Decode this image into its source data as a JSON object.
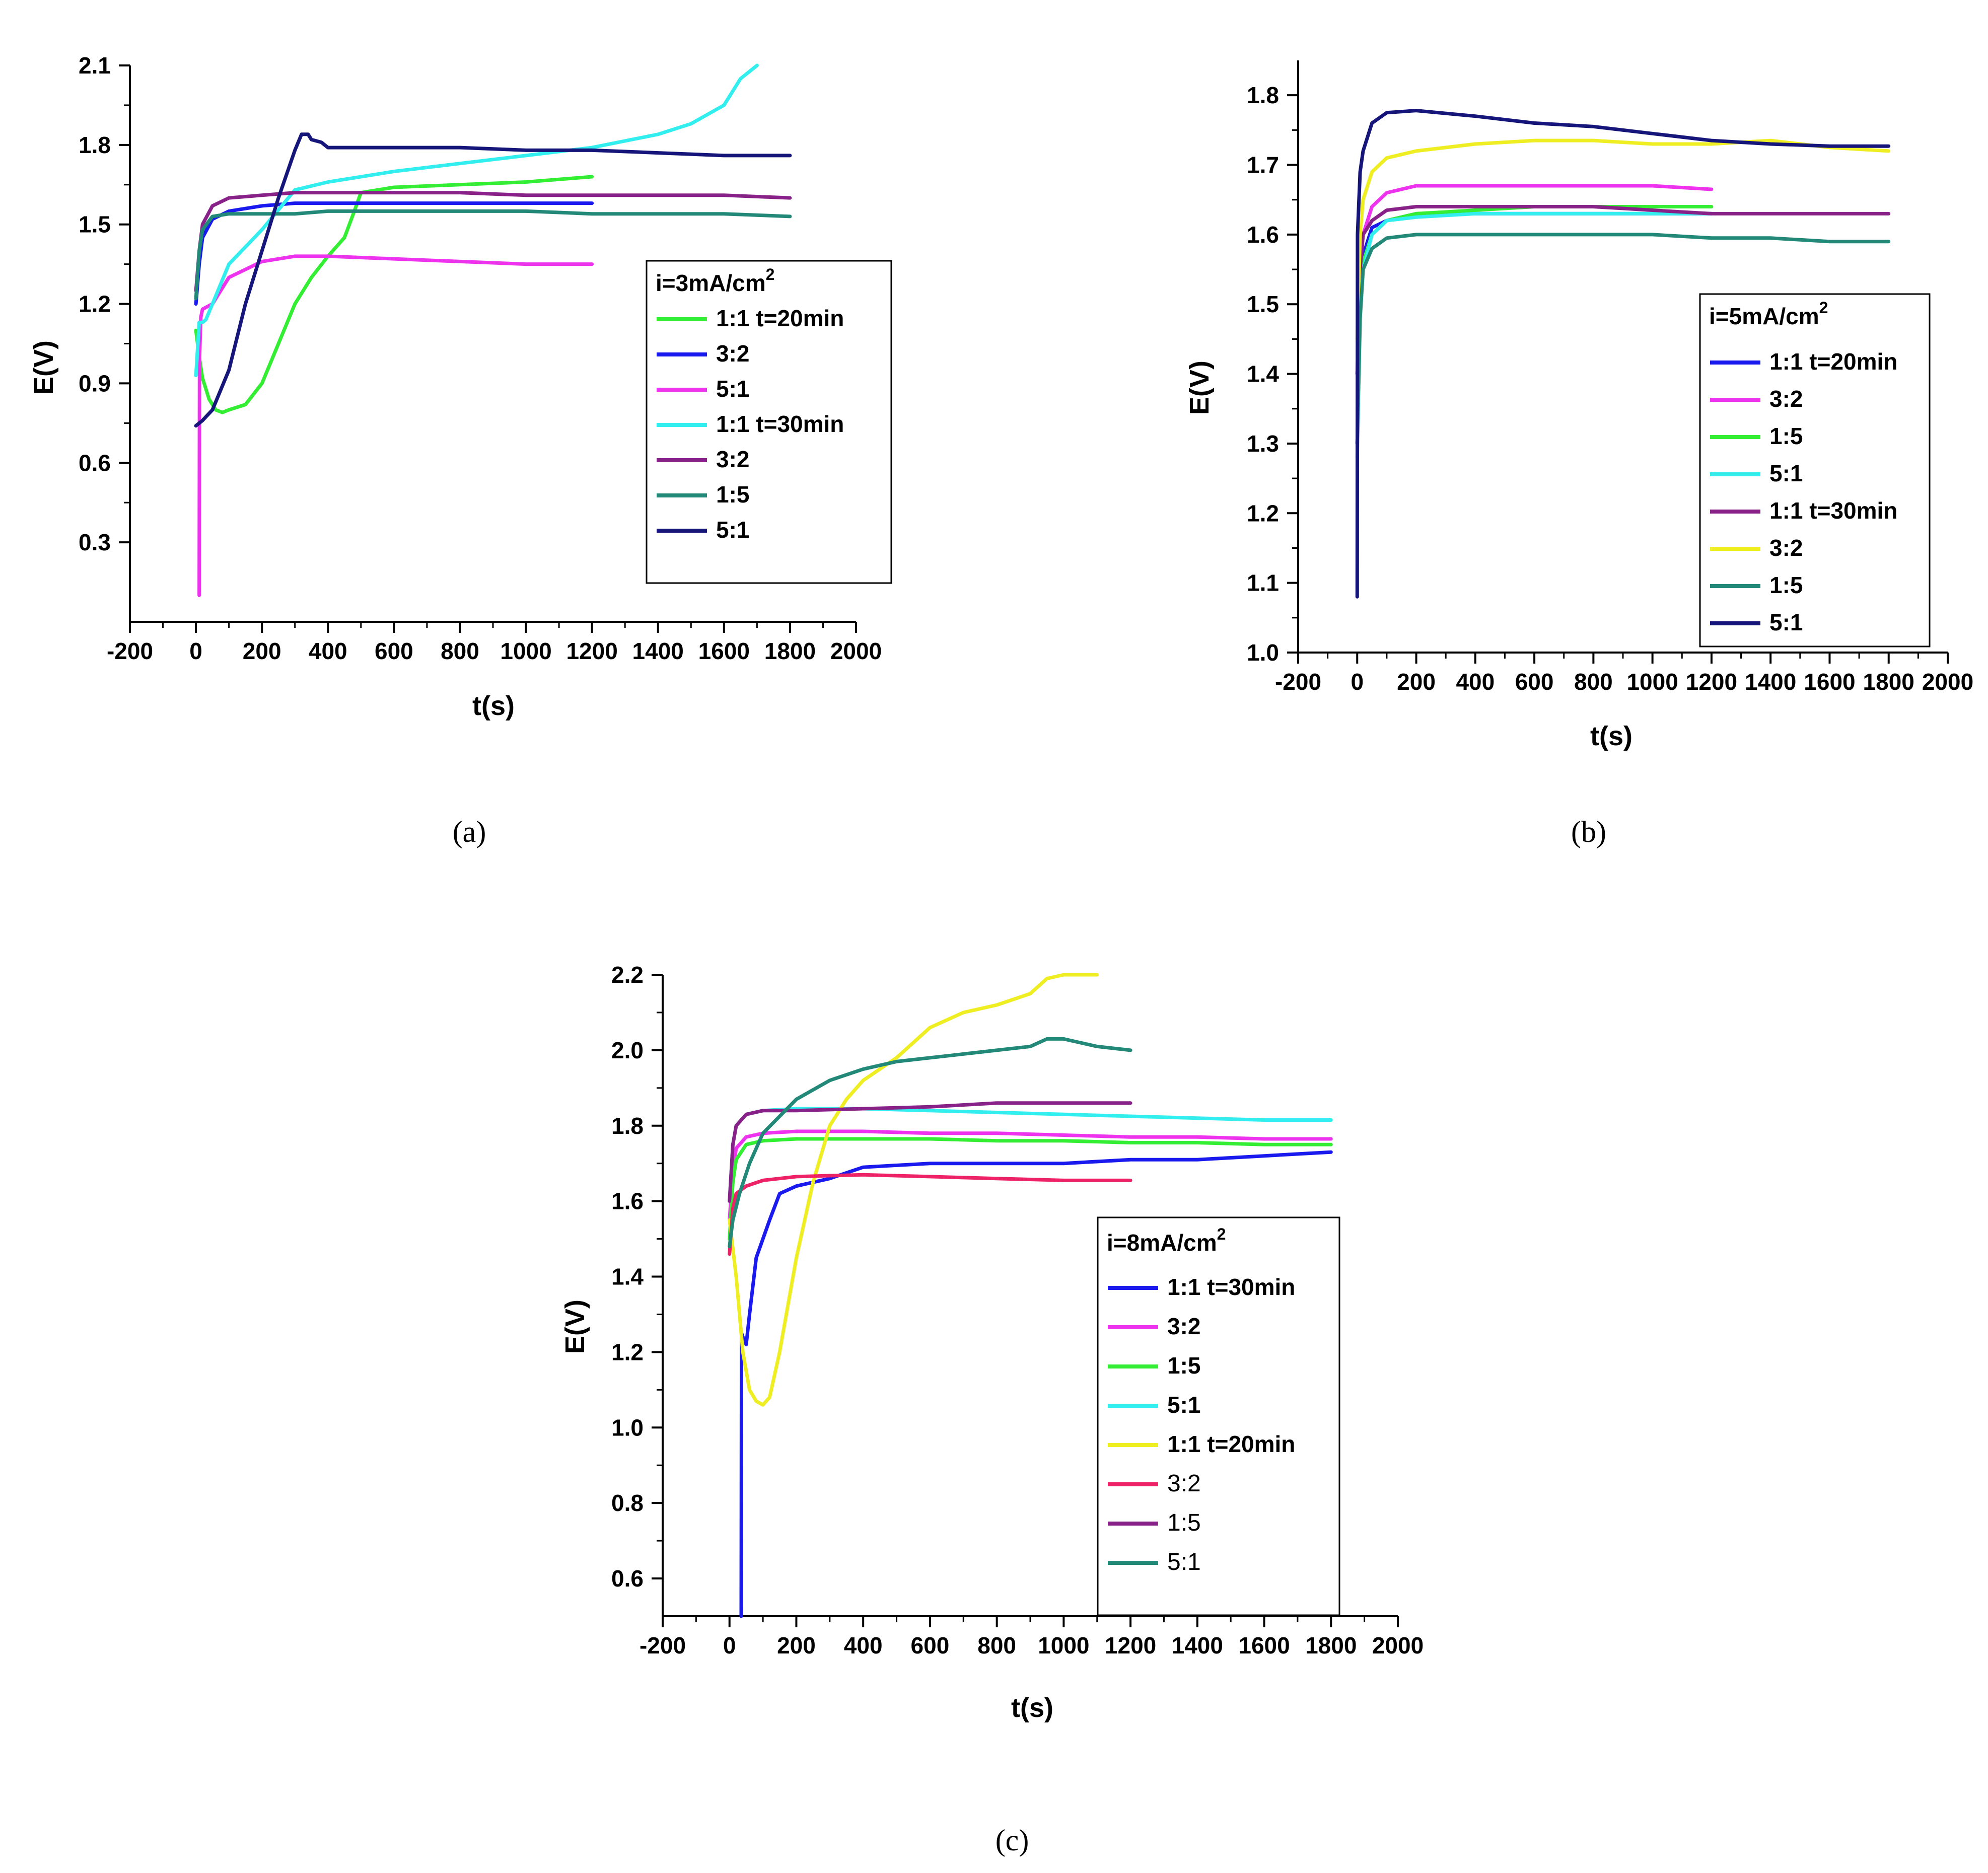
{
  "figure_captions": [
    "(a)",
    "(b)",
    "(c)"
  ],
  "chart_data": [
    {
      "type": "line",
      "caption_letter": "a",
      "xlabel": "t(s)",
      "ylabel": "E(V)",
      "xlim": [
        -200,
        2000
      ],
      "ylim": [
        0,
        2.1
      ],
      "xticks": [
        -200,
        0,
        200,
        400,
        600,
        800,
        1000,
        1200,
        1400,
        1600,
        1800,
        2000
      ],
      "yticks": [
        0.3,
        0.6,
        0.9,
        1.2,
        1.5,
        1.8,
        2.1
      ],
      "ytick_labels": [
        "0.3",
        "0.6",
        "0.9",
        "1.2",
        "1.5",
        "1.8",
        "2.1"
      ],
      "legend_title": "i=3mA/cm",
      "legend_title_sup": "2",
      "legend_position": "center-right",
      "series": [
        {
          "name": "1:1 t=20min",
          "color": "#33ee33",
          "x": [
            0,
            10,
            20,
            40,
            60,
            80,
            100,
            150,
            200,
            250,
            300,
            350,
            400,
            450,
            480,
            500,
            550,
            600,
            800,
            1000,
            1200
          ],
          "y": [
            1.1,
            1.0,
            0.92,
            0.84,
            0.8,
            0.79,
            0.8,
            0.82,
            0.9,
            1.05,
            1.2,
            1.3,
            1.38,
            1.45,
            1.55,
            1.62,
            1.63,
            1.64,
            1.65,
            1.66,
            1.68
          ]
        },
        {
          "name": "3:2",
          "color": "#1a1aee",
          "x": [
            0,
            10,
            20,
            50,
            100,
            200,
            300,
            400,
            600,
            800,
            1000,
            1200
          ],
          "y": [
            1.2,
            1.35,
            1.45,
            1.52,
            1.55,
            1.57,
            1.58,
            1.58,
            1.58,
            1.58,
            1.58,
            1.58
          ]
        },
        {
          "name": "5:1",
          "color": "#ee33ee",
          "x": [
            10,
            11,
            15,
            20,
            50,
            100,
            200,
            300,
            400,
            600,
            800,
            1000,
            1200
          ],
          "y": [
            0.1,
            1.0,
            1.15,
            1.18,
            1.2,
            1.3,
            1.36,
            1.38,
            1.38,
            1.37,
            1.36,
            1.35,
            1.35
          ]
        },
        {
          "name": "1:1 t=30min",
          "color": "#33eeee",
          "x": [
            0,
            10,
            20,
            30,
            50,
            100,
            200,
            300,
            400,
            600,
            800,
            1000,
            1200,
            1400,
            1500,
            1600,
            1650,
            1700
          ],
          "y": [
            0.93,
            1.13,
            1.13,
            1.14,
            1.2,
            1.35,
            1.48,
            1.63,
            1.66,
            1.7,
            1.73,
            1.76,
            1.79,
            1.84,
            1.88,
            1.95,
            2.05,
            2.1
          ]
        },
        {
          "name": "3:2",
          "color": "#882288",
          "x": [
            0,
            10,
            20,
            50,
            100,
            200,
            300,
            400,
            600,
            800,
            1000,
            1200,
            1400,
            1600,
            1800
          ],
          "y": [
            1.25,
            1.4,
            1.5,
            1.57,
            1.6,
            1.61,
            1.62,
            1.62,
            1.62,
            1.62,
            1.61,
            1.61,
            1.61,
            1.61,
            1.6
          ]
        },
        {
          "name": "1:5",
          "color": "#228877",
          "x": [
            0,
            10,
            20,
            50,
            100,
            200,
            300,
            400,
            600,
            800,
            1000,
            1200,
            1400,
            1600,
            1800
          ],
          "y": [
            1.22,
            1.4,
            1.48,
            1.53,
            1.54,
            1.54,
            1.54,
            1.55,
            1.55,
            1.55,
            1.55,
            1.54,
            1.54,
            1.54,
            1.53
          ]
        },
        {
          "name": "5:1",
          "color": "#15157a",
          "x": [
            0,
            20,
            50,
            100,
            150,
            200,
            250,
            300,
            320,
            340,
            350,
            380,
            400,
            500,
            600,
            800,
            1000,
            1200,
            1400,
            1600,
            1800
          ],
          "y": [
            0.74,
            0.76,
            0.8,
            0.95,
            1.2,
            1.4,
            1.6,
            1.78,
            1.84,
            1.84,
            1.82,
            1.81,
            1.79,
            1.79,
            1.79,
            1.79,
            1.78,
            1.78,
            1.77,
            1.76,
            1.76
          ]
        }
      ]
    },
    {
      "type": "line",
      "caption_letter": "b",
      "xlabel": "t(s)",
      "ylabel": "E(V)",
      "xlim": [
        -200,
        2000
      ],
      "ylim": [
        1.0,
        1.85
      ],
      "xticks": [
        -200,
        0,
        200,
        400,
        600,
        800,
        1000,
        1200,
        1400,
        1600,
        1800,
        2000
      ],
      "yticks": [
        1.0,
        1.1,
        1.2,
        1.3,
        1.4,
        1.5,
        1.6,
        1.7,
        1.8
      ],
      "ytick_labels": [
        "1.0",
        "1.1",
        "1.2",
        "1.3",
        "1.4",
        "1.5",
        "1.6",
        "1.7",
        "1.8"
      ],
      "legend_title": "i=5mA/cm",
      "legend_title_sup": "2",
      "legend_position": "lower-right",
      "series": [
        {
          "name": "1:1 t=20min",
          "color": "#1a1aee",
          "x": [
            0,
            10,
            20,
            50,
            100,
            200,
            400,
            600,
            800,
            1000,
            1200
          ],
          "y": [
            1.3,
            1.5,
            1.57,
            1.61,
            1.62,
            1.63,
            1.63,
            1.63,
            1.63,
            1.63,
            1.63
          ]
        },
        {
          "name": "3:2",
          "color": "#ee33ee",
          "x": [
            0,
            10,
            20,
            50,
            100,
            200,
            400,
            600,
            800,
            1000,
            1200
          ],
          "y": [
            1.4,
            1.55,
            1.6,
            1.64,
            1.66,
            1.67,
            1.67,
            1.67,
            1.67,
            1.67,
            1.665
          ]
        },
        {
          "name": "1:5",
          "color": "#33ee33",
          "x": [
            0,
            10,
            20,
            50,
            100,
            200,
            400,
            600,
            800,
            1000,
            1200
          ],
          "y": [
            1.3,
            1.5,
            1.56,
            1.6,
            1.62,
            1.63,
            1.635,
            1.64,
            1.64,
            1.64,
            1.64
          ]
        },
        {
          "name": "5:1",
          "color": "#33eeee",
          "x": [
            0,
            10,
            20,
            50,
            100,
            200,
            400,
            600,
            800,
            1000,
            1200
          ],
          "y": [
            1.28,
            1.48,
            1.55,
            1.6,
            1.62,
            1.625,
            1.63,
            1.63,
            1.63,
            1.63,
            1.63
          ]
        },
        {
          "name": "1:1 t=30min",
          "color": "#882288",
          "x": [
            0,
            10,
            20,
            50,
            100,
            200,
            400,
            600,
            800,
            1000,
            1200,
            1400,
            1600,
            1800
          ],
          "y": [
            1.4,
            1.55,
            1.6,
            1.62,
            1.635,
            1.64,
            1.64,
            1.64,
            1.64,
            1.635,
            1.63,
            1.63,
            1.63,
            1.63
          ]
        },
        {
          "name": "3:2",
          "color": "#eeee22",
          "x": [
            0,
            10,
            20,
            50,
            100,
            200,
            400,
            600,
            800,
            1000,
            1200,
            1400,
            1600,
            1800
          ],
          "y": [
            1.45,
            1.6,
            1.65,
            1.69,
            1.71,
            1.72,
            1.73,
            1.735,
            1.735,
            1.73,
            1.73,
            1.735,
            1.725,
            1.72
          ]
        },
        {
          "name": "1:5",
          "color": "#228877",
          "x": [
            0,
            10,
            20,
            50,
            100,
            200,
            400,
            600,
            800,
            1000,
            1200,
            1400,
            1600,
            1800
          ],
          "y": [
            1.3,
            1.48,
            1.55,
            1.58,
            1.595,
            1.6,
            1.6,
            1.6,
            1.6,
            1.6,
            1.595,
            1.595,
            1.59,
            1.59
          ]
        },
        {
          "name": "5:1",
          "color": "#15157a",
          "x": [
            0,
            1,
            10,
            20,
            50,
            100,
            200,
            400,
            600,
            800,
            1000,
            1200,
            1400,
            1600,
            1800
          ],
          "y": [
            1.08,
            1.6,
            1.69,
            1.72,
            1.76,
            1.775,
            1.778,
            1.77,
            1.76,
            1.755,
            1.745,
            1.735,
            1.73,
            1.727,
            1.727
          ]
        }
      ]
    },
    {
      "type": "line",
      "caption_letter": "c",
      "xlabel": "t(s)",
      "ylabel": "E(V)",
      "xlim": [
        -200,
        2000
      ],
      "ylim": [
        0.5,
        2.2
      ],
      "xticks": [
        -200,
        0,
        200,
        400,
        600,
        800,
        1000,
        1200,
        1400,
        1600,
        1800,
        2000
      ],
      "yticks": [
        0.6,
        0.8,
        1.0,
        1.2,
        1.4,
        1.6,
        1.8,
        2.0,
        2.2
      ],
      "ytick_labels": [
        "0.6",
        "0.8",
        "1.0",
        "1.2",
        "1.4",
        "1.6",
        "1.8",
        "2.0",
        "2.2"
      ],
      "legend_title": "i=8mA/cm",
      "legend_title_sup": "2",
      "legend_position": "center-right",
      "series": [
        {
          "name": "1:1 t=30min",
          "color": "#1a1aee",
          "x": [
            35,
            36,
            40,
            50,
            60,
            80,
            100,
            120,
            150,
            200,
            300,
            400,
            600,
            800,
            1000,
            1200,
            1400,
            1600,
            1800
          ],
          "y": [
            0.5,
            1.25,
            1.24,
            1.22,
            1.3,
            1.45,
            1.5,
            1.55,
            1.62,
            1.64,
            1.66,
            1.69,
            1.7,
            1.7,
            1.7,
            1.71,
            1.71,
            1.72,
            1.73
          ]
        },
        {
          "name": "3:2",
          "color": "#ee33ee",
          "x": [
            0,
            10,
            20,
            50,
            100,
            200,
            400,
            600,
            800,
            1000,
            1200,
            1400,
            1600,
            1800
          ],
          "y": [
            1.55,
            1.68,
            1.74,
            1.77,
            1.78,
            1.785,
            1.785,
            1.78,
            1.78,
            1.775,
            1.77,
            1.77,
            1.765,
            1.765
          ]
        },
        {
          "name": "1:5",
          "color": "#33ee33",
          "x": [
            0,
            10,
            20,
            50,
            100,
            200,
            400,
            600,
            800,
            1000,
            1200,
            1400,
            1600,
            1800
          ],
          "y": [
            1.5,
            1.65,
            1.71,
            1.75,
            1.76,
            1.765,
            1.765,
            1.765,
            1.76,
            1.76,
            1.755,
            1.755,
            1.75,
            1.75
          ]
        },
        {
          "name": "5:1",
          "color": "#33eeee",
          "x": [
            0,
            10,
            20,
            50,
            100,
            200,
            400,
            600,
            800,
            1000,
            1200,
            1400,
            1600,
            1800
          ],
          "y": [
            1.6,
            1.75,
            1.8,
            1.83,
            1.84,
            1.845,
            1.845,
            1.84,
            1.835,
            1.83,
            1.825,
            1.82,
            1.815,
            1.815
          ]
        },
        {
          "name": "1:1 t=20min",
          "color": "#eeee22",
          "x": [
            0,
            20,
            40,
            60,
            80,
            100,
            120,
            150,
            200,
            250,
            300,
            350,
            400,
            500,
            600,
            700,
            800,
            900,
            950,
            1000,
            1050,
            1100
          ],
          "y": [
            1.55,
            1.4,
            1.2,
            1.1,
            1.07,
            1.06,
            1.08,
            1.2,
            1.45,
            1.65,
            1.8,
            1.87,
            1.92,
            1.98,
            2.06,
            2.1,
            2.12,
            2.15,
            2.19,
            2.2,
            2.2,
            2.2
          ]
        },
        {
          "name": "3:2",
          "color": "#ee2266",
          "x": [
            0,
            10,
            20,
            50,
            100,
            200,
            400,
            600,
            800,
            1000,
            1200
          ],
          "y": [
            1.46,
            1.58,
            1.62,
            1.64,
            1.655,
            1.665,
            1.67,
            1.665,
            1.66,
            1.655,
            1.655
          ]
        },
        {
          "name": "1:5",
          "color": "#882288",
          "x": [
            0,
            10,
            20,
            50,
            100,
            200,
            400,
            600,
            800,
            1000,
            1200
          ],
          "y": [
            1.6,
            1.75,
            1.8,
            1.83,
            1.84,
            1.84,
            1.845,
            1.85,
            1.86,
            1.86,
            1.86
          ]
        },
        {
          "name": "5:1",
          "color": "#228877",
          "x": [
            0,
            10,
            30,
            60,
            100,
            200,
            300,
            400,
            500,
            600,
            700,
            800,
            900,
            950,
            1000,
            1100,
            1200
          ],
          "y": [
            1.48,
            1.55,
            1.62,
            1.7,
            1.78,
            1.87,
            1.92,
            1.95,
            1.97,
            1.98,
            1.99,
            2.0,
            2.01,
            2.03,
            2.03,
            2.01,
            2.0
          ]
        }
      ]
    }
  ]
}
